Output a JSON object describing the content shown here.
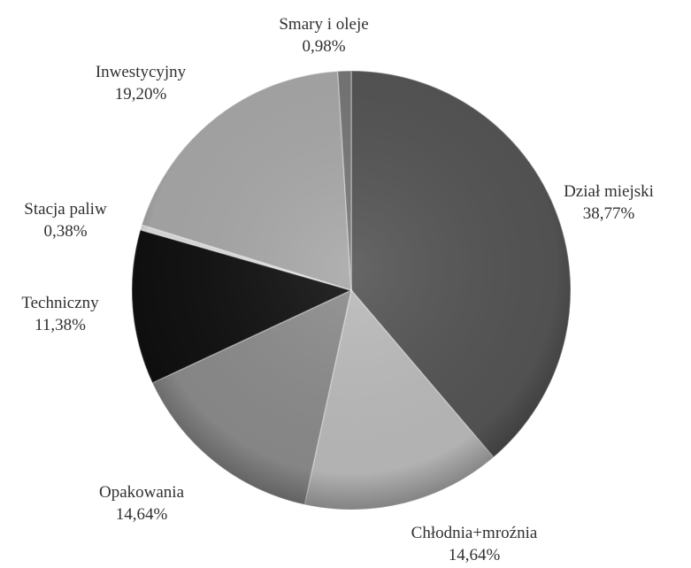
{
  "chart_data": {
    "type": "pie",
    "title": "",
    "categories": [
      "Dział miejski",
      "Chłodnia+mroźnia",
      "Opakowania",
      "Techniczny",
      "Stacja paliw",
      "Inwestycyjny",
      "Smary i oleje"
    ],
    "values": [
      38.77,
      14.64,
      14.64,
      11.38,
      0.38,
      19.2,
      0.98
    ],
    "value_labels": [
      "38,77%",
      "14,64%",
      "14,64%",
      "11,38%",
      "0,38%",
      "19,20%",
      "0,98%"
    ],
    "colors": [
      "#555555",
      "#bbbbbb",
      "#8c8c8c",
      "#111111",
      "#dddddd",
      "#a8a8a8",
      "#777777"
    ],
    "start_angle_deg": 0,
    "direction": "clockwise",
    "legend": "none"
  }
}
